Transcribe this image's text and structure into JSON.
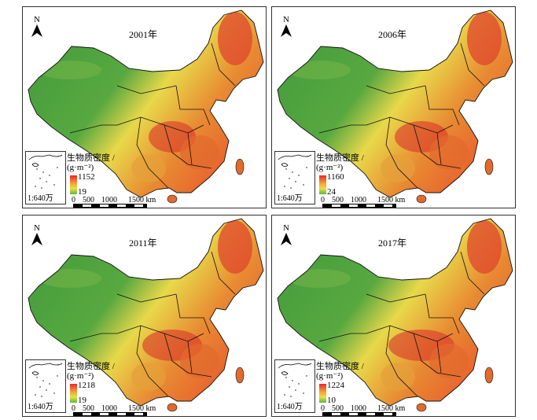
{
  "panels": [
    {
      "year": "2001年",
      "legend_max": "1152",
      "legend_min": "19"
    },
    {
      "year": "2006年",
      "legend_max": "1160",
      "legend_min": "24"
    },
    {
      "year": "2011年",
      "legend_max": "1218",
      "legend_min": "19"
    },
    {
      "year": "2017年",
      "legend_max": "1224",
      "legend_min": "10"
    }
  ],
  "common": {
    "north_label": "N",
    "legend_title_1": "生物质密度 /",
    "legend_title_2": "(g·m⁻²)",
    "scale_ratio": "1:640万",
    "scale_ticks": [
      "0",
      "500",
      "1000",
      "1500 km"
    ]
  },
  "colors": {
    "low": "#3f9a3c",
    "mid": "#e8d84a",
    "high": "#d8262a",
    "border": "#111111"
  }
}
